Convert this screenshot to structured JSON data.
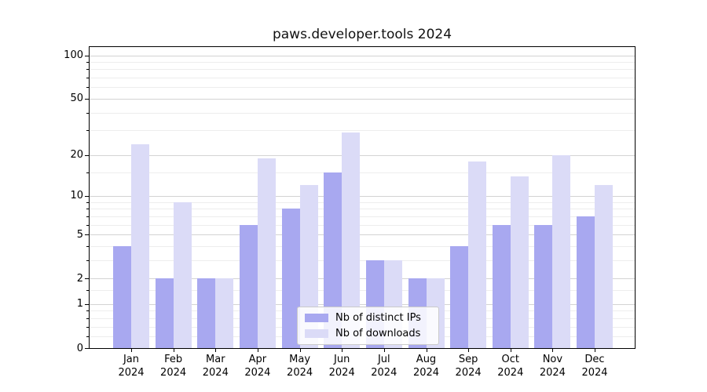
{
  "chart_data": {
    "type": "bar",
    "title": "paws.developer.tools 2024",
    "categories": [
      "Jan",
      "Feb",
      "Mar",
      "Apr",
      "May",
      "Jun",
      "Jul",
      "Aug",
      "Sep",
      "Oct",
      "Nov",
      "Dec"
    ],
    "category_year": "2024",
    "series": [
      {
        "name": "Nb of distinct IPs",
        "color": "#a8a8f0",
        "values": [
          4,
          2,
          2,
          6,
          8,
          15,
          3,
          2,
          4,
          6,
          6,
          7
        ]
      },
      {
        "name": "Nb of downloads",
        "color": "#dbdbf7",
        "values": [
          24,
          9,
          2,
          19,
          12,
          29,
          3,
          2,
          18,
          14,
          20,
          12
        ]
      }
    ],
    "xlabel": "",
    "ylabel": "",
    "yscale": "log1p",
    "ylim": [
      0,
      114
    ],
    "y_major_ticks": [
      0,
      1,
      2,
      5,
      10,
      20,
      50,
      100
    ],
    "y_major_tick_labels": [
      "0",
      "1",
      "2",
      "5",
      "10",
      "20",
      "50",
      "100"
    ],
    "y_minor_ticks": [
      0.2,
      0.4,
      0.6,
      0.8,
      1.5,
      3,
      4,
      6,
      7,
      8,
      9,
      15,
      30,
      40,
      60,
      70,
      80,
      90
    ],
    "grid": true,
    "legend_position": "lower center"
  },
  "colors": {
    "background": "#ffffff",
    "axis": "#000000",
    "grid_major": "#d3d3d3",
    "grid_minor": "#ededed",
    "text": "#000000",
    "bar_distinct_ips": "#a8a8f0",
    "bar_downloads": "#dbdbf7"
  }
}
